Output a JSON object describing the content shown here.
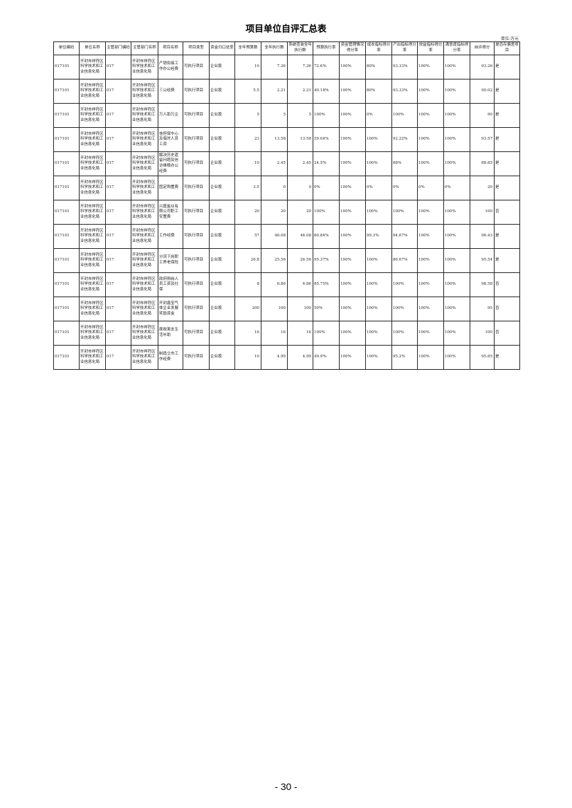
{
  "title": "项目单位自评汇总表",
  "unit_label": "单位:万元",
  "page_number": "- 30 -",
  "columns": [
    "单位编码",
    "单位名称",
    "主管部门编码",
    "主管部门名称",
    "项目名称",
    "项目类型",
    "资金归口处室",
    "全年预算数",
    "全年执行数",
    "系统查询全年执行数",
    "预算执行率",
    "资金管理情况得分率",
    "成本指标得分率",
    "产出指标得分率",
    "效益指标得分率",
    "满意度指标得分率",
    "自评得分",
    "是否存偏差项目"
  ],
  "rows": [
    [
      "017101",
      "开封市祥符区科学技术和工业信息化局",
      "017",
      "开封市祥符区科学技术和工业信息化局",
      "产销衔接工作办公经费",
      "可执行项目",
      "企业股",
      "10",
      "7.26",
      "7.26",
      "72.6%",
      "100%",
      "80%",
      "93.33%",
      "100%",
      "100%",
      "93.26",
      "是"
    ],
    [
      "017101",
      "开封市祥符区科学技术和工业信息化局",
      "017",
      "开封市祥符区科学技术和工业信息化局",
      "三公经费",
      "可执行项目",
      "企业股",
      "5.5",
      "2.21",
      "2.21",
      "40.18%",
      "100%",
      "80%",
      "93.33%",
      "100%",
      "100%",
      "90.02",
      "是"
    ],
    [
      "017101",
      "开封市祥符区科学技术和工业信息化局",
      "017",
      "开封市祥符区科学技术和工业信息化局",
      "万人助万企",
      "可执行项目",
      "企业股",
      "5",
      "5",
      "5",
      "100%",
      "100%",
      "0%",
      "100%",
      "100%",
      "100%",
      "90",
      "是"
    ],
    [
      "017101",
      "开封市祥符区科学技术和工业信息化局",
      "017",
      "开封市祥符区科学技术和工业信息化局",
      "信担保中心及临时人员工资",
      "可执行项目",
      "企业股",
      "23",
      "13.58",
      "13.58",
      "59.04%",
      "100%",
      "100%",
      "92.22%",
      "100%",
      "100%",
      "93.57",
      "是"
    ],
    [
      "017101",
      "开封市祥符区科学技术和工业信息化局",
      "017",
      "开封市祥符区科学技术和工业信息化局",
      "解决历史遗留问题及信访维稳办公经费",
      "可执行项目",
      "企业股",
      "10",
      "2.45",
      "2.45",
      "24.5%",
      "100%",
      "100%",
      "88%",
      "100%",
      "100%",
      "88.85",
      "是"
    ],
    [
      "017101",
      "开封市祥符区科学技术和工业信息化局",
      "017",
      "开封市祥符区科学技术和工业信息化局",
      "固定购置费",
      "可执行项目",
      "企业股",
      "3.5",
      "0",
      "0",
      "0%",
      "100%",
      "0%",
      "0%",
      "0%",
      "0%",
      "20",
      "是"
    ],
    [
      "017101",
      "开封市祥符区科学技术和工业信息化局",
      "017",
      "开封市祥符区科学技术和工业信息化局",
      "兴盛盐业有限公司职工安置费",
      "可执行项目",
      "企业股",
      "20",
      "20",
      "20",
      "100%",
      "100%",
      "100%",
      "100%",
      "100%",
      "100%",
      "100",
      "否"
    ],
    [
      "017101",
      "开封市祥符区科学技术和工业信息化局",
      "017",
      "开封市祥符区科学技术和工业信息化局",
      "工作经费",
      "可执行项目",
      "企业股",
      "57",
      "46.08",
      "46.08",
      "80.84%",
      "100%",
      "99.3%",
      "94.67%",
      "100%",
      "100%",
      "96.43",
      "是"
    ],
    [
      "017101",
      "开封市祥符区科学技术和工业信息化局",
      "017",
      "开封市祥符区科学技术和工业信息化局",
      "分流下岗职工养老保险",
      "可执行项目",
      "企业股",
      "26.8",
      "25.56",
      "26.56",
      "95.37%",
      "100%",
      "100%",
      "86.67%",
      "100%",
      "100%",
      "95.54",
      "是"
    ],
    [
      "017101",
      "开封市祥符区科学技术和工业信息化局",
      "017",
      "开封市祥符区科学技术和工业信息化局",
      "政府购岗人员工资及社保",
      "可执行项目",
      "企业股",
      "8",
      "6.86",
      "6.86",
      "85.75%",
      "100%",
      "100%",
      "100%",
      "100%",
      "100%",
      "98.58",
      "否"
    ],
    [
      "017101",
      "开封市祥符区科学技术和工业信息化局",
      "017",
      "开封市祥符区科学技术和工业信息化局",
      "开封鑫宝气体企业发展奖励资金",
      "可执行项目",
      "企业股",
      "200",
      "100",
      "100",
      "50%",
      "100%",
      "100%",
      "100%",
      "100%",
      "100%",
      "95",
      "否"
    ],
    [
      "017101",
      "开封市祥符区科学技术和工业信息化局",
      "017",
      "开封市祥符区科学技术和工业信息化局",
      "面收面支生活补助",
      "可执行项目",
      "企业股",
      "16",
      "16",
      "16",
      "100%",
      "100%",
      "100%",
      "100%",
      "100%",
      "100%",
      "100",
      "否"
    ],
    [
      "017101",
      "开封市祥符区科学技术和工业信息化局",
      "017",
      "开封市祥符区科学技术和工业信息化局",
      "制造立市工作经费",
      "可执行项目",
      "企业股",
      "10",
      "4.99",
      "4.99",
      "49.9%",
      "100%",
      "100%",
      "95.2%",
      "100%",
      "100%",
      "95.85",
      "是"
    ]
  ]
}
